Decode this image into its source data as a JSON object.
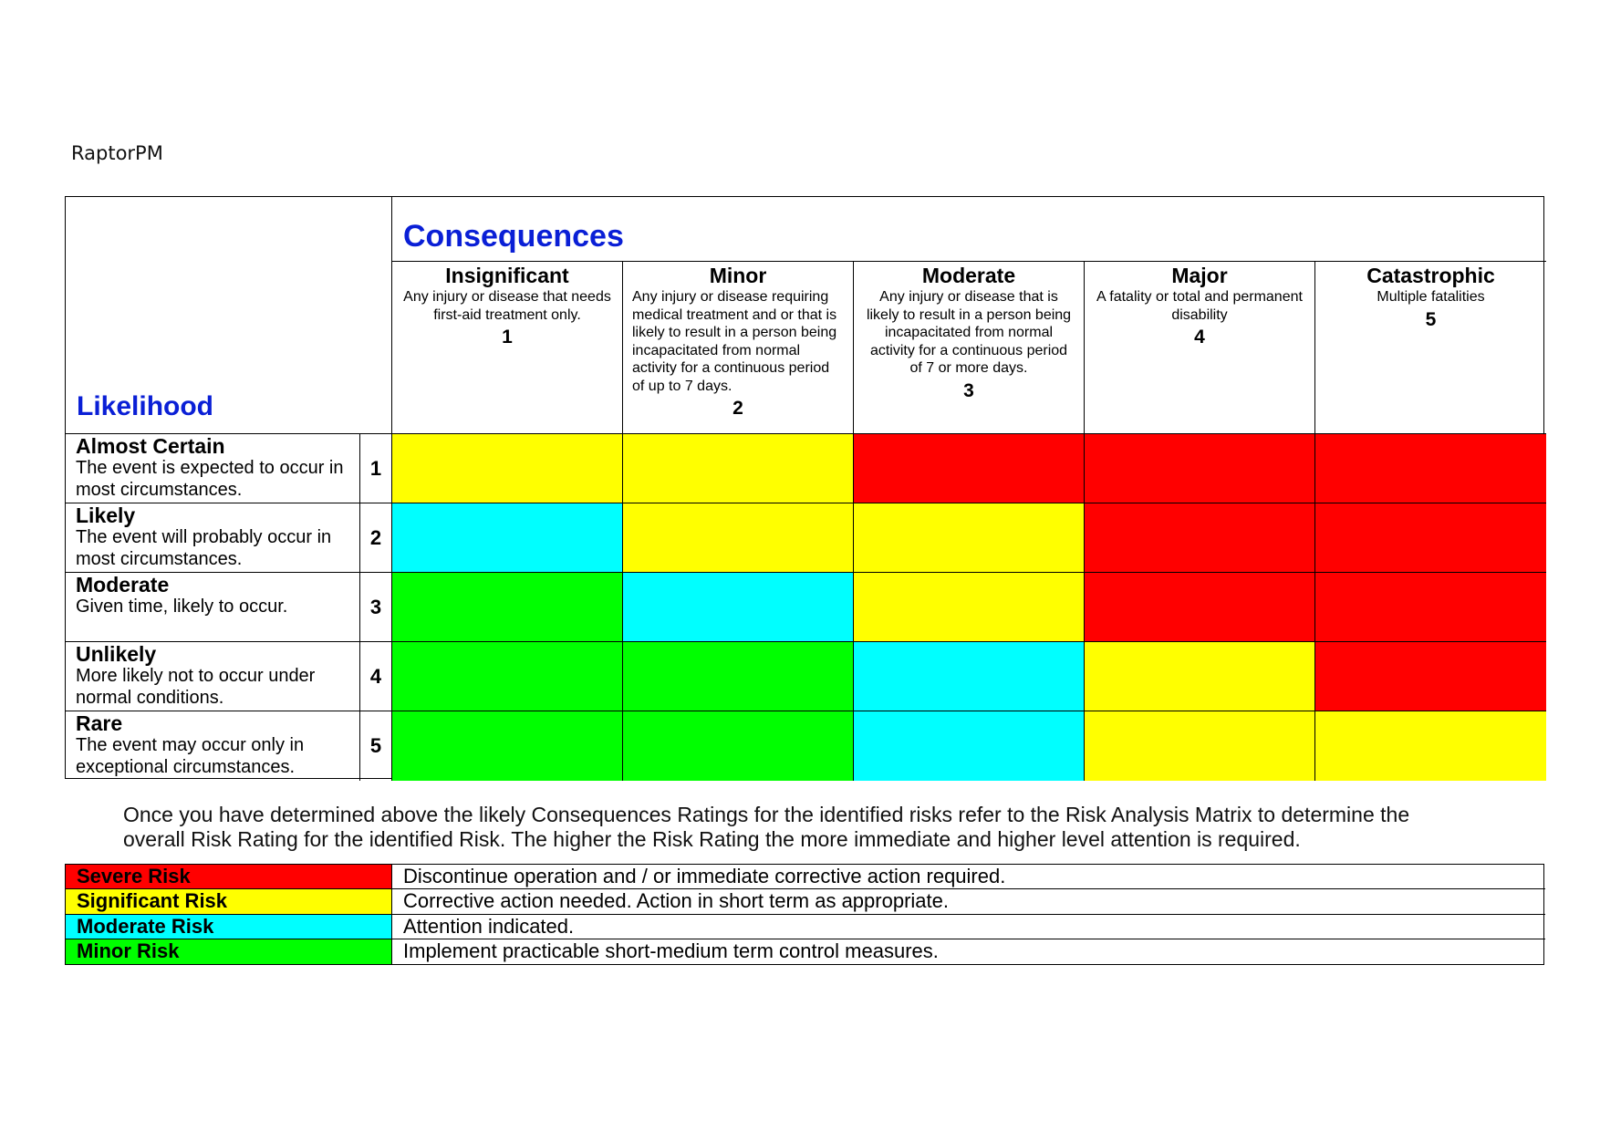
{
  "brand": "RaptorPM",
  "matrix": {
    "likelihood_label": "Likelihood",
    "consequences_label": "Consequences",
    "consequences": [
      {
        "title": "Insignificant",
        "desc": "Any injury or disease that needs first-aid treatment only.",
        "number": "1"
      },
      {
        "title": "Minor",
        "desc": "Any injury or disease requiring medical treatment and or that is likely to result in a person being incapacitated from normal activity for a continuous period of up to 7 days.",
        "number": "2"
      },
      {
        "title": "Moderate",
        "desc": "Any injury or disease that is likely to result in a person being incapacitated from normal activity for a continuous period of 7 or more days.",
        "number": "3"
      },
      {
        "title": "Major",
        "desc": "A fatality or total and permanent disability",
        "number": "4"
      },
      {
        "title": "Catastrophic",
        "desc": "Multiple fatalities",
        "number": "5"
      }
    ],
    "likelihoods": [
      {
        "title": "Almost Certain",
        "desc": "The event is expected to occur in most circumstances.",
        "number": "1",
        "cells": [
          "significant",
          "significant",
          "severe",
          "severe",
          "severe"
        ]
      },
      {
        "title": "Likely",
        "desc": "The event will probably occur in most circumstances.",
        "number": "2",
        "cells": [
          "moderate",
          "significant",
          "significant",
          "severe",
          "severe"
        ]
      },
      {
        "title": "Moderate",
        "desc": "Given time, likely to occur.",
        "number": "3",
        "cells": [
          "minor",
          "moderate",
          "significant",
          "severe",
          "severe"
        ]
      },
      {
        "title": "Unlikely",
        "desc": "More likely not to occur under normal conditions.",
        "number": "4",
        "cells": [
          "minor",
          "minor",
          "moderate",
          "significant",
          "severe"
        ]
      },
      {
        "title": "Rare",
        "desc": "The event may occur only in exceptional circumstances.",
        "number": "5",
        "cells": [
          "minor",
          "minor",
          "moderate",
          "significant",
          "significant"
        ]
      }
    ]
  },
  "note": "Once you have determined above the likely Consequences Ratings for the identified risks refer to the Risk Analysis Matrix to determine the overall Risk Rating for the identified Risk.  The higher the Risk Rating the more immediate and higher level attention is required.",
  "colors": {
    "severe": "#ff0000",
    "significant": "#ffff00",
    "moderate": "#00ffff",
    "minor": "#00ff00"
  },
  "legend": [
    {
      "key": "severe",
      "name": "Severe Risk",
      "text": "Discontinue operation and / or immediate corrective action required."
    },
    {
      "key": "significant",
      "name": "Significant Risk",
      "text": "Corrective action needed. Action in short term as appropriate."
    },
    {
      "key": "moderate",
      "name": "Moderate Risk",
      "text": "Attention indicated."
    },
    {
      "key": "minor",
      "name": "Minor Risk",
      "text": "Implement practicable short-medium term control measures."
    }
  ]
}
